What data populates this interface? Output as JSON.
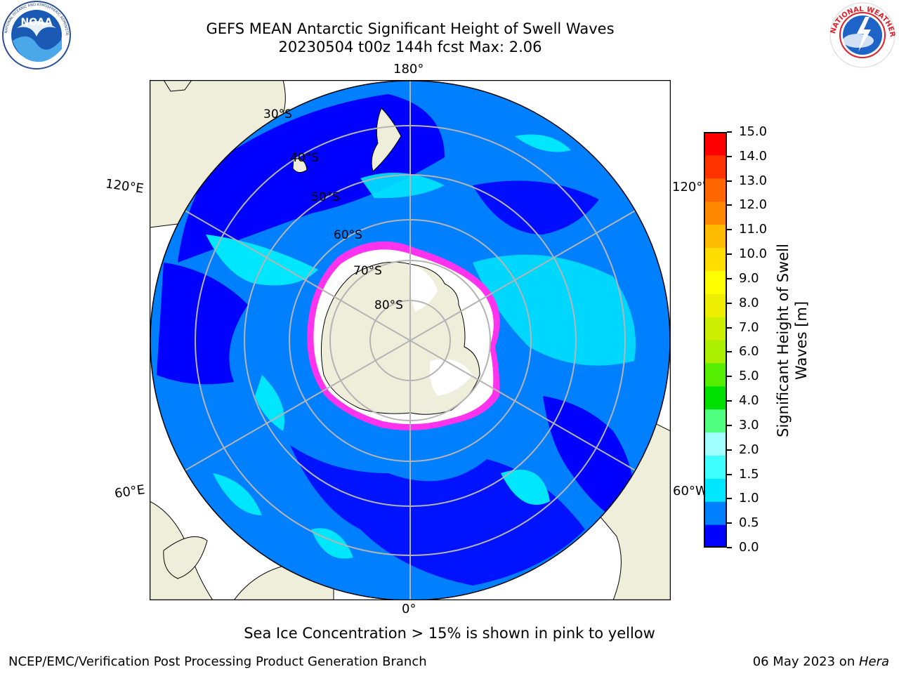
{
  "header": {
    "title_line1": "GEFS MEAN Antarctic Significant Height of Swell Waves",
    "title_line2": "20230504 t00z 144h fcst   Max: 2.06"
  },
  "logos": {
    "noaa": {
      "text": "NOAA",
      "ring_text": "NATIONAL OCEANIC AND ATMOSPHERIC ADMINISTRATION",
      "icon": "noaa-logo-icon"
    },
    "nws": {
      "ring_text": "NATIONAL WEATHER SERVICE",
      "icon": "nws-logo-icon"
    }
  },
  "map": {
    "projection": "south-polar-stereographic",
    "lon_labels": {
      "top": "180°",
      "bottom": "0°",
      "upper_left": "120°E",
      "lower_left": "60°E",
      "upper_right": "120°W",
      "lower_right": "60°W"
    },
    "lat_labels": [
      "30°S",
      "40°S",
      "50°S",
      "60°S",
      "70°S",
      "80°S"
    ],
    "colors": {
      "land": "#efeedb",
      "ice_shelf": "#ffffff",
      "ocean_low": "#0000ff",
      "ocean_mid": "#0080ff",
      "ocean_high": "#00e6ff",
      "ice_edge": "#ff33ee",
      "ice_yellow": "#ffcc44",
      "grid": "#b4b4b4"
    }
  },
  "colorbar": {
    "label": "Significant Height of Swell Waves [m]",
    "ticks": [
      "15.0",
      "14.0",
      "13.0",
      "12.0",
      "11.0",
      "10.0",
      "9.0",
      "8.0",
      "7.0",
      "6.0",
      "5.0",
      "4.0",
      "3.0",
      "2.0",
      "1.5",
      "1.0",
      "0.5",
      "0.0"
    ],
    "tick_values": [
      15,
      14,
      13,
      12,
      11,
      10,
      9,
      8,
      7,
      6,
      5,
      4,
      3,
      2,
      1.5,
      1,
      0.5,
      0
    ],
    "colors_bottom_to_top": [
      "#0000ff",
      "#0080ff",
      "#00e6ff",
      "#40ffff",
      "#a0ffff",
      "#50ff80",
      "#00e000",
      "#55ee00",
      "#aaee00",
      "#ccee00",
      "#eeee00",
      "#ffff00",
      "#ffdd00",
      "#ffbb00",
      "#ff8800",
      "#ff6600",
      "#ff3300",
      "#ff0000"
    ]
  },
  "notes": {
    "ice": "Sea Ice Concentration > 15% is shown in pink to yellow"
  },
  "footer": {
    "left": "NCEP/EMC/Verification Post Processing Product Generation Branch",
    "date": "06 May 2023 on ",
    "host": "Hera"
  }
}
